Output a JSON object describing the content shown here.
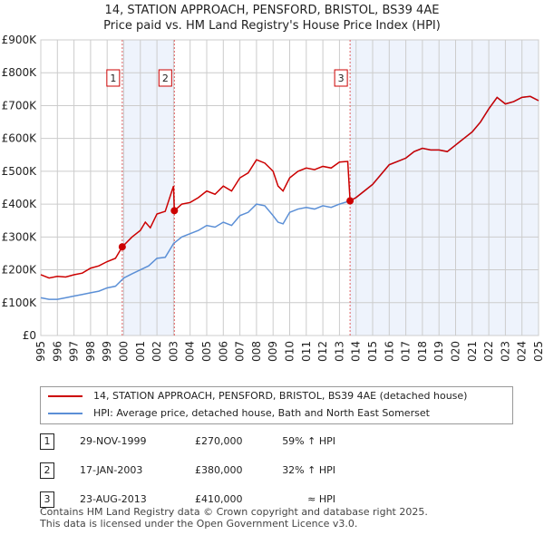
{
  "chart_data": {
    "type": "line",
    "title": "14, STATION APPROACH, PENSFORD, BRISTOL, BS39 4AE",
    "subtitle": "Price paid vs. HM Land Registry's House Price Index (HPI)",
    "xlim": [
      1995,
      2025
    ],
    "ylim": [
      0,
      900000
    ],
    "y_ticks": [
      "£0",
      "£100K",
      "£200K",
      "£300K",
      "£400K",
      "£500K",
      "£600K",
      "£700K",
      "£800K",
      "£900K"
    ],
    "x_ticks": [
      "1995",
      "1996",
      "1997",
      "1998",
      "1999",
      "2000",
      "2001",
      "2002",
      "2003",
      "2004",
      "2005",
      "2006",
      "2007",
      "2008",
      "2009",
      "2010",
      "2011",
      "2012",
      "2013",
      "2014",
      "2015",
      "2016",
      "2017",
      "2018",
      "2019",
      "2020",
      "2021",
      "2022",
      "2023",
      "2024",
      "2025"
    ],
    "grid": true,
    "series": [
      {
        "name": "14, STATION APPROACH, PENSFORD, BRISTOL, BS39 4AE (detached house)",
        "color": "#cc0000",
        "x": [
          1995,
          1995.5,
          1996,
          1996.5,
          1997,
          1997.5,
          1998,
          1998.5,
          1999,
          1999.5,
          1999.91,
          2000.5,
          2001,
          2001.3,
          2001.6,
          2002,
          2002.5,
          2002.9,
          2003.0,
          2003.05,
          2003.5,
          2004,
          2004.5,
          2005,
          2005.5,
          2006,
          2006.5,
          2007,
          2007.5,
          2008,
          2008.5,
          2009,
          2009.3,
          2009.6,
          2010,
          2010.5,
          2011,
          2011.5,
          2012,
          2012.5,
          2013,
          2013.5,
          2013.64,
          2014,
          2014.5,
          2015,
          2015.5,
          2016,
          2016.5,
          2017,
          2017.5,
          2018,
          2018.5,
          2019,
          2019.5,
          2020,
          2020.5,
          2021,
          2021.5,
          2022,
          2022.5,
          2023,
          2023.5,
          2024,
          2024.5,
          2025
        ],
        "y": [
          185000,
          175000,
          180000,
          178000,
          185000,
          190000,
          205000,
          212000,
          225000,
          235000,
          270000,
          300000,
          320000,
          345000,
          328000,
          370000,
          378000,
          440000,
          455000,
          380000,
          400000,
          405000,
          420000,
          440000,
          430000,
          455000,
          440000,
          480000,
          495000,
          535000,
          525000,
          500000,
          455000,
          440000,
          480000,
          500000,
          510000,
          505000,
          515000,
          510000,
          528000,
          530000,
          410000,
          420000,
          440000,
          460000,
          490000,
          520000,
          530000,
          540000,
          560000,
          570000,
          565000,
          565000,
          560000,
          580000,
          600000,
          620000,
          650000,
          690000,
          725000,
          705000,
          712000,
          725000,
          728000,
          715000
        ]
      },
      {
        "name": "HPI: Average price, detached house, Bath and North East Somerset",
        "color": "#5b8fd6",
        "x": [
          1995,
          1995.5,
          1996,
          1996.5,
          1997,
          1997.5,
          1998,
          1998.5,
          1999,
          1999.5,
          2000,
          2000.5,
          2001,
          2001.5,
          2002,
          2002.5,
          2003,
          2003.5,
          2004,
          2004.5,
          2005,
          2005.5,
          2006,
          2006.5,
          2007,
          2007.5,
          2008,
          2008.5,
          2009,
          2009.3,
          2009.6,
          2010,
          2010.5,
          2011,
          2011.5,
          2012,
          2012.5,
          2013,
          2013.64,
          2014,
          2014.5,
          2015,
          2015.5,
          2016,
          2016.5,
          2017,
          2017.5,
          2018,
          2018.5,
          2019,
          2019.5,
          2020,
          2020.5,
          2021,
          2021.5,
          2022,
          2022.5,
          2023,
          2023.5,
          2024,
          2024.5,
          2025
        ],
        "y": [
          115000,
          110000,
          110000,
          115000,
          120000,
          125000,
          130000,
          135000,
          145000,
          150000,
          175000,
          188000,
          200000,
          212000,
          235000,
          238000,
          280000,
          300000,
          310000,
          320000,
          335000,
          330000,
          345000,
          335000,
          365000,
          375000,
          400000,
          395000,
          365000,
          345000,
          340000,
          375000,
          385000,
          390000,
          385000,
          395000,
          390000,
          400000,
          410000,
          420000,
          440000,
          460000,
          490000,
          520000,
          530000,
          540000,
          560000,
          570000,
          565000,
          565000,
          560000,
          580000,
          600000,
          620000,
          650000,
          690000,
          725000,
          705000,
          712000,
          725000,
          728000,
          715000
        ]
      }
    ],
    "sales": [
      {
        "label": "1",
        "x": 1999.91,
        "y": 270000,
        "date": "29-NOV-1999",
        "price": "£270,000",
        "hpi": "59% ↑ HPI"
      },
      {
        "label": "2",
        "x": 2003.05,
        "y": 380000,
        "date": "17-JAN-2003",
        "price": "£380,000",
        "hpi": "32% ↑ HPI"
      },
      {
        "label": "3",
        "x": 2013.64,
        "y": 410000,
        "date": "23-AUG-2013",
        "price": "£410,000",
        "hpi": "≈ HPI"
      }
    ],
    "legend_placement": "below"
  },
  "footer": [
    "Contains HM Land Registry data © Crown copyright and database right 2025.",
    "This data is licensed under the Open Government Licence v3.0."
  ]
}
